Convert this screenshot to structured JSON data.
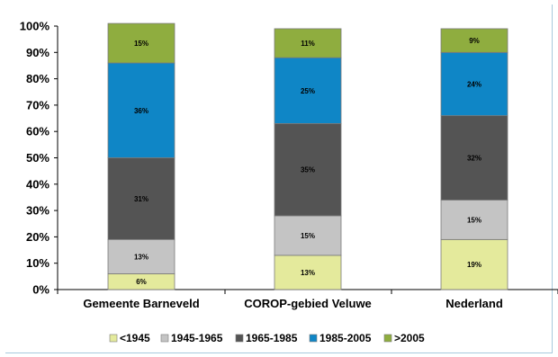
{
  "chart_data": {
    "type": "bar",
    "stacked": true,
    "categories": [
      "Gemeente Barneveld",
      "COROP-gebied Veluwe",
      "Nederland"
    ],
    "series": [
      {
        "name": "<1945",
        "color": "#e4ea9c",
        "values": [
          6,
          13,
          19
        ],
        "labels": [
          "6%",
          "13%",
          "19%"
        ]
      },
      {
        "name": "1945-1965",
        "color": "#c4c4c4",
        "values": [
          13,
          15,
          15
        ],
        "labels": [
          "13%",
          "15%",
          "15%"
        ]
      },
      {
        "name": "1965-1985",
        "color": "#545454",
        "values": [
          31,
          35,
          32
        ],
        "labels": [
          "31%",
          "35%",
          "32%"
        ]
      },
      {
        "name": "1985-2005",
        "color": "#0f86c6",
        "values": [
          36,
          25,
          24
        ],
        "labels": [
          "36%",
          "25%",
          "24%"
        ]
      },
      {
        "name": ">2005",
        "color": "#8fad3f",
        "values": [
          15,
          11,
          9
        ],
        "labels": [
          "15%",
          "11%",
          "9%"
        ]
      }
    ],
    "ylim": [
      0,
      100
    ],
    "yticks": [
      "0%",
      "10%",
      "20%",
      "30%",
      "40%",
      "50%",
      "60%",
      "70%",
      "80%",
      "90%",
      "100%"
    ],
    "grid": false,
    "legend": "bottom",
    "title": "",
    "xlabel": "",
    "ylabel": ""
  }
}
